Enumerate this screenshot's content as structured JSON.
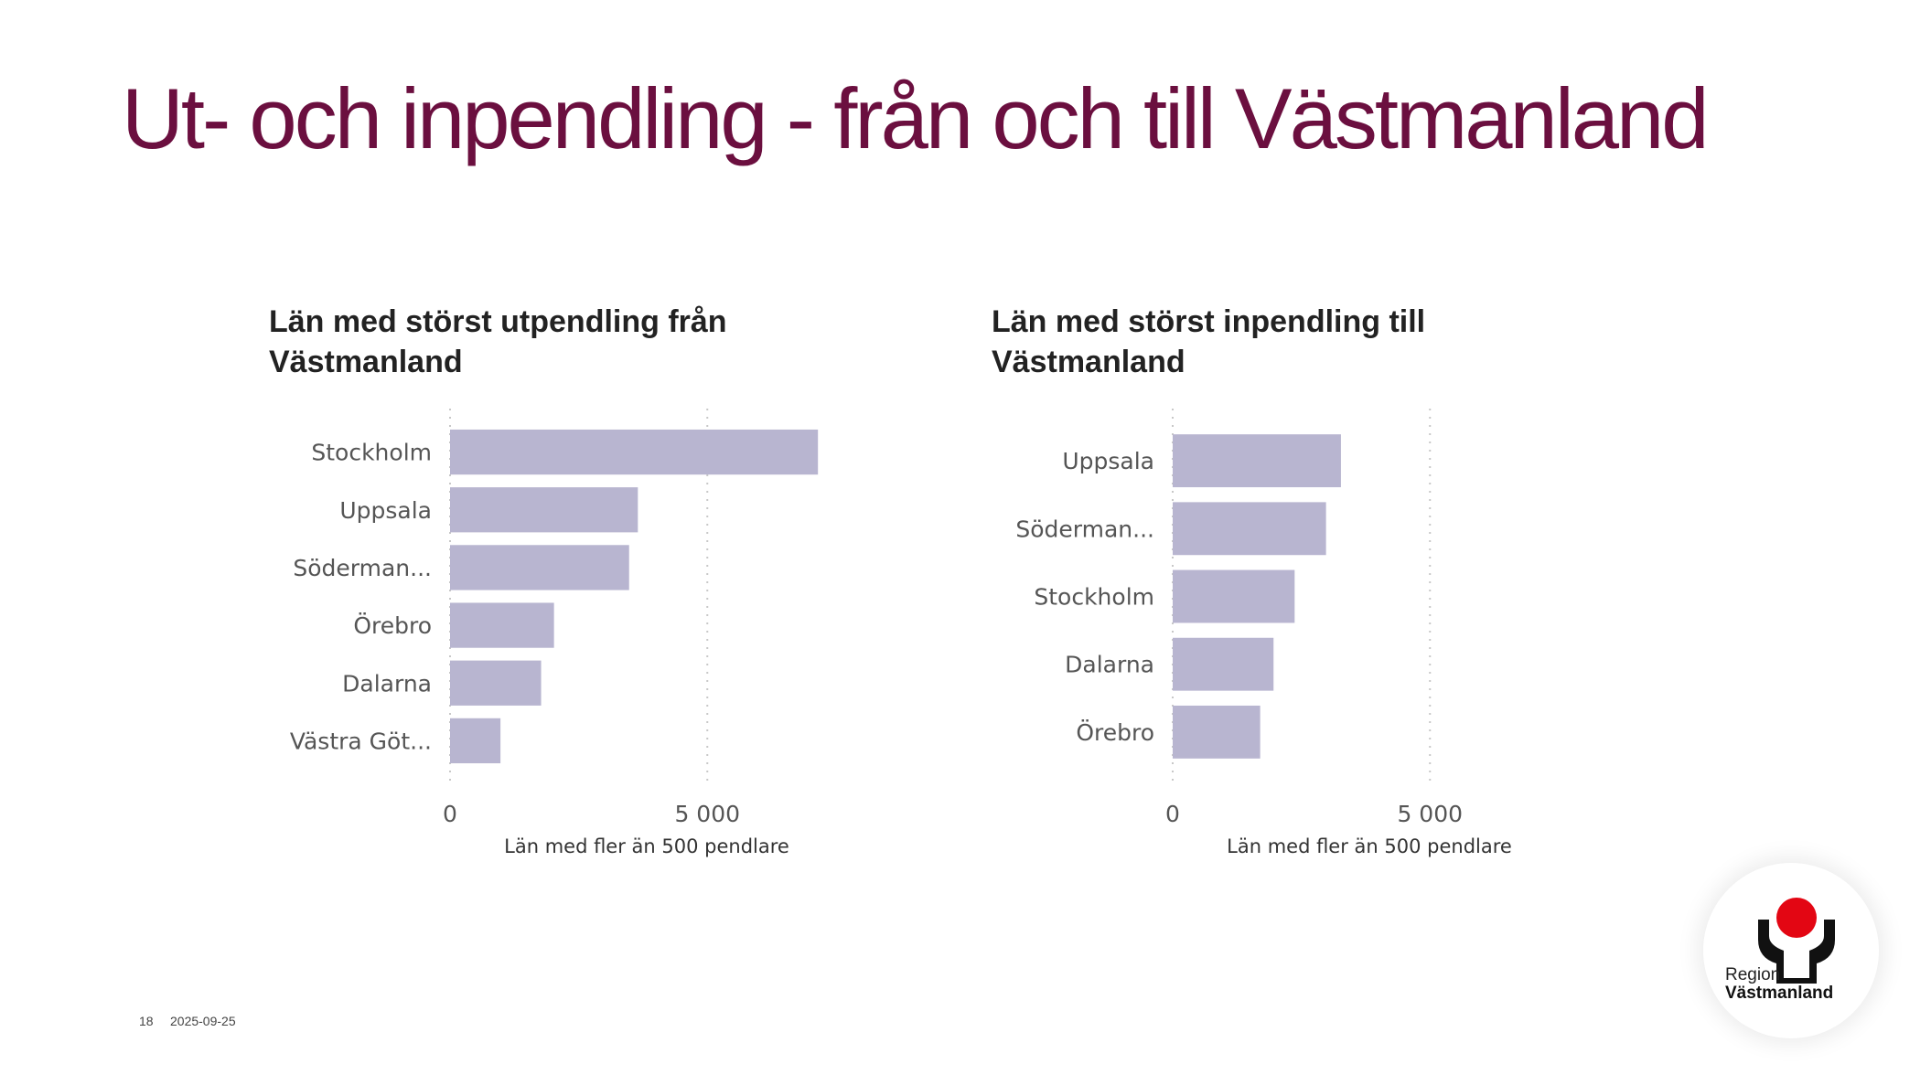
{
  "slide": {
    "title": "Ut- och inpendling - från och till Västmanland",
    "page_number": "18",
    "date": "2025-09-25",
    "logo": {
      "line1": "Region",
      "line2": "Västmanland",
      "dot_color": "#e30613",
      "mark_color": "#111111"
    }
  },
  "colors": {
    "title": "#6b0f3f",
    "bar": "#b8b5d0"
  },
  "chart_data": [
    {
      "type": "bar",
      "orientation": "horizontal",
      "title": "Län med störst utpendling från Västmanland",
      "categories": [
        "Stockholm",
        "Uppsala",
        "Söderman...",
        "Örebro",
        "Dalarna",
        "Västra Göt..."
      ],
      "values": [
        7150,
        3650,
        3480,
        2020,
        1770,
        980
      ],
      "xlabel": "Län med fler än 500 pendlare",
      "xlim": [
        0,
        8000
      ],
      "xticks": [
        0,
        5000
      ],
      "xtick_labels": [
        "0",
        "5 000"
      ],
      "grid": true,
      "legend": "none"
    },
    {
      "type": "bar",
      "orientation": "horizontal",
      "title": "Län med störst inpendling till Västmanland",
      "categories": [
        "Uppsala",
        "Söderman...",
        "Stockholm",
        "Dalarna",
        "Örebro"
      ],
      "values": [
        3270,
        2980,
        2370,
        1960,
        1700
      ],
      "xlabel": "Län med fler än 500 pendlare",
      "xlim": [
        0,
        8000
      ],
      "xticks": [
        0,
        5000
      ],
      "xtick_labels": [
        "0",
        "5 000"
      ],
      "grid": true,
      "legend": "none"
    }
  ]
}
